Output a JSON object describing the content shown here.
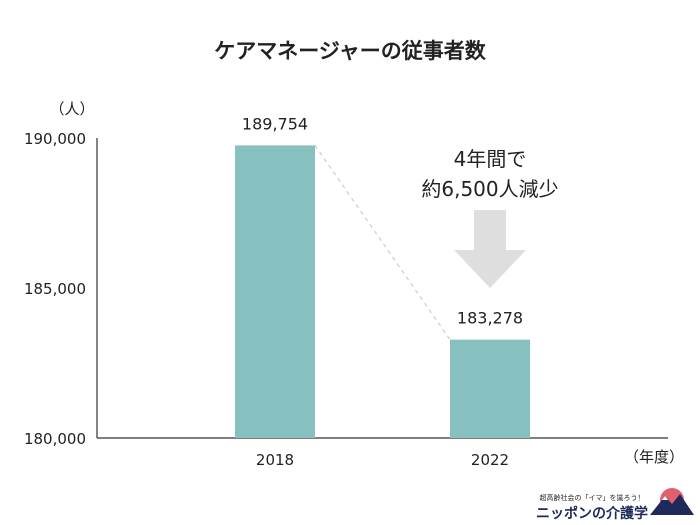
{
  "chart_data": {
    "type": "bar",
    "title": "ケアマネージャーの従事者数",
    "ylabel": "（人）",
    "xlabel": "（年度）",
    "categories": [
      "2018",
      "2022"
    ],
    "values": [
      189754,
      183278
    ],
    "value_labels": [
      "189,754",
      "183,278"
    ],
    "yticks": [
      180000,
      185000,
      190000
    ],
    "ytick_labels": [
      "180,000",
      "185,000",
      "190,000"
    ],
    "ylim": [
      180000,
      190000
    ],
    "bar_color": "#86c0bf",
    "grid": false,
    "annotation": {
      "lines": [
        "4年間で",
        "約6,500人減少"
      ],
      "arrow_color": "#dedede"
    }
  },
  "logo": {
    "tagline": "超高齢社会の「イマ」を識ろう！",
    "name": "ニッポンの介護学",
    "accent": "#e06070",
    "brand": "#1f2a5a"
  }
}
